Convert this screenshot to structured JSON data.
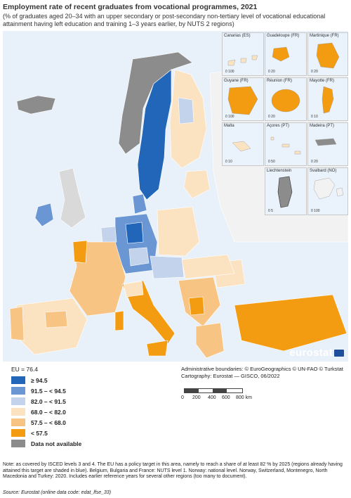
{
  "header": {
    "title": "Employment rate of recent graduates from vocational programmes, 2021",
    "subtitle": "(% of graduates aged 20–34 with an upper secondary or post-secondary non-tertiary level of vocational educational attainment having left education and training 1–3 years earlier, by NUTS 2 regions)"
  },
  "insets": [
    {
      "name": "Canarias (ES)",
      "scale": [
        "0",
        "100"
      ]
    },
    {
      "name": "Guadeloupe (FR)",
      "scale": [
        "0",
        "20"
      ]
    },
    {
      "name": "Martinique (FR)",
      "scale": [
        "0",
        "20"
      ]
    },
    {
      "name": "Guyane (FR)",
      "scale": [
        "0",
        "100"
      ]
    },
    {
      "name": "Réunion (FR)",
      "scale": [
        "0",
        "20"
      ]
    },
    {
      "name": "Mayotte (FR)",
      "scale": [
        "0",
        "10"
      ]
    },
    {
      "name": "Malta",
      "scale": [
        "0",
        "10"
      ]
    },
    {
      "name": "Açores (PT)",
      "scale": [
        "0",
        "50"
      ]
    },
    {
      "name": "Madeira (PT)",
      "scale": [
        "0",
        "20"
      ]
    },
    {
      "name": "Liechtenstein",
      "scale": [
        "0",
        "5"
      ]
    },
    {
      "name": "Svalbard (NO)",
      "scale": [
        "0",
        "100"
      ]
    }
  ],
  "branding": {
    "logo_text": "eurostat"
  },
  "legend": {
    "eu_value": "EU = 76.4",
    "classes": [
      {
        "label": "≥ 94.5",
        "color": "#2166b8"
      },
      {
        "label": "91.5 – < 94.5",
        "color": "#6a97d3"
      },
      {
        "label": "82.0 – < 91.5",
        "color": "#c3d3ec"
      },
      {
        "label": "68.0 – < 82.0",
        "color": "#fbe3c2"
      },
      {
        "label": "57.5 – < 68.0",
        "color": "#f7c483"
      },
      {
        "label": "< 57.5",
        "color": "#f39c12"
      },
      {
        "label": "Data not available",
        "color": "#8c8c8c"
      }
    ]
  },
  "credits": {
    "admin": "Administrative boundaries: © EuroGeographics © UN-FAO © Turkstat",
    "cartography": "Cartography: Eurostat — GISCO, 06/2022"
  },
  "scale": {
    "ticks": [
      "0",
      "200",
      "400",
      "600",
      "800 km"
    ]
  },
  "footer": {
    "note": "Note: as covered by ISCED levels 3 and 4. The EU has a policy target in this area, namely to reach a share of at least 82 % by 2025 (regions already having attained this target are shaded in blue). Belgium, Bulgaria and France: NUTS level 1. Norway: national level. Norway, Switzerland, Montenegro, North Macedonia and Turkey: 2020. Includes earlier reference years for several other regions (too many to document).",
    "source": "Source: Eurostat (online data code: edat_lfse_33)"
  }
}
